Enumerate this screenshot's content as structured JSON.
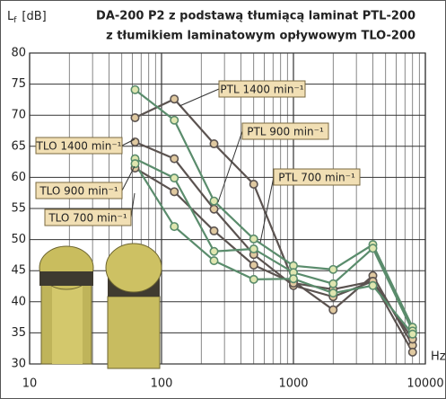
{
  "chart_data": {
    "type": "line",
    "title": [
      "DA-200 P2 z podstawą tłumiącą laminat PTL-200",
      "z tłumikiem laminatowym opływowym TLO-200"
    ],
    "y_label": [
      "L",
      "f",
      "[dB]"
    ],
    "x_label": "Hz",
    "log_x": true,
    "grid": true,
    "xlim": [
      10,
      10000
    ],
    "xticks": [
      10,
      100,
      1000,
      10000
    ],
    "xminorticks": [
      20,
      30,
      40,
      50,
      60,
      70,
      80,
      90,
      200,
      300,
      400,
      500,
      600,
      700,
      800,
      900,
      2000,
      3000,
      4000,
      5000,
      6000,
      7000,
      8000,
      9000
    ],
    "ylim": [
      30,
      80
    ],
    "yticks": [
      30,
      35,
      40,
      45,
      50,
      55,
      60,
      65,
      70,
      75,
      80
    ],
    "x": [
      63,
      125,
      250,
      500,
      1000,
      2000,
      4000,
      8000
    ],
    "series": [
      {
        "name": "PTL 1400 min⁻¹",
        "color": "#5b5350",
        "values": [
          69.6,
          72.6,
          65.4,
          58.9,
          43.3,
          38.7,
          44.2,
          33.0
        ]
      },
      {
        "name": "PTL 900 min⁻¹",
        "color": "#5b5350",
        "values": [
          65.7,
          63.0,
          54.9,
          47.6,
          42.6,
          40.8,
          43.3,
          34.0
        ]
      },
      {
        "name": "PTL 700 min⁻¹",
        "color": "#5b5350",
        "values": [
          61.5,
          57.7,
          51.4,
          45.9,
          43.0,
          42.0,
          43.3,
          31.9
        ]
      },
      {
        "name": "TLO 1400 min⁻¹",
        "color": "#5a8c6c",
        "values": [
          74.1,
          69.2,
          56.2,
          50.1,
          45.8,
          45.2,
          49.2,
          35.9
        ]
      },
      {
        "name": "TLO 900 min⁻¹",
        "color": "#5a8c6c",
        "values": [
          63.0,
          59.9,
          48.1,
          48.5,
          44.7,
          42.9,
          48.6,
          35.3
        ]
      },
      {
        "name": "TLO 700 min⁻¹",
        "color": "#5a8c6c",
        "values": [
          62.2,
          52.1,
          46.6,
          43.6,
          43.7,
          41.4,
          42.6,
          34.8
        ]
      }
    ]
  }
}
